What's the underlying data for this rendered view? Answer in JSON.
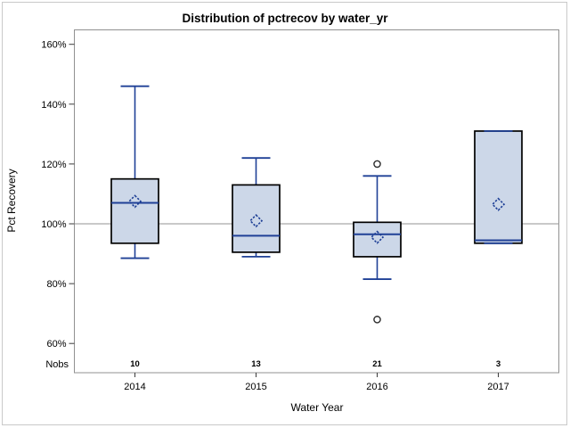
{
  "figure": {
    "background": "#ffffff",
    "outer_border_color": "#c9c9c9"
  },
  "chart_data": {
    "type": "boxplot",
    "title": "Distribution of pctrecov by water_yr",
    "xlabel": "Water Year",
    "ylabel": "Pct Recovery",
    "categories": [
      "2014",
      "2015",
      "2016",
      "2017"
    ],
    "y_axis": {
      "min": 60,
      "max": 160,
      "step": 20,
      "unit": "%",
      "tick_values": [
        60,
        80,
        100,
        120,
        140,
        160
      ],
      "tick_labels": [
        "60%",
        "80%",
        "100%",
        "120%",
        "140%",
        "160%"
      ]
    },
    "reference_line": 100,
    "grid": false,
    "legend": "none",
    "nobs": {
      "label": "Nobs",
      "values": [
        "10",
        "13",
        "21",
        "3"
      ]
    },
    "boxes": [
      {
        "category": "2014",
        "whisker_low": 88.5,
        "q1": 93.5,
        "median": 107,
        "mean": 107.5,
        "q3": 115,
        "whisker_high": 146,
        "outliers": []
      },
      {
        "category": "2015",
        "whisker_low": 89,
        "q1": 90.5,
        "median": 96,
        "mean": 101,
        "q3": 113,
        "whisker_high": 122,
        "outliers": []
      },
      {
        "category": "2016",
        "whisker_low": 81.5,
        "q1": 89,
        "median": 96.5,
        "mean": 95.5,
        "q3": 100.5,
        "whisker_high": 116,
        "outliers": [
          120,
          68
        ]
      },
      {
        "category": "2017",
        "whisker_low": 93.5,
        "q1": 93.5,
        "median": 94.5,
        "mean": 106.5,
        "q3": 131,
        "whisker_high": 131,
        "outliers": []
      }
    ],
    "colors": {
      "box_fill": "#ccd7e8",
      "box_border": "#000000",
      "line_blue": "#1f4096",
      "reference_line": "#a9a9a9",
      "plot_border": "#919191",
      "tick": "#3a3a3a",
      "outlier": "#2d2d2d",
      "text": "#000000"
    }
  }
}
